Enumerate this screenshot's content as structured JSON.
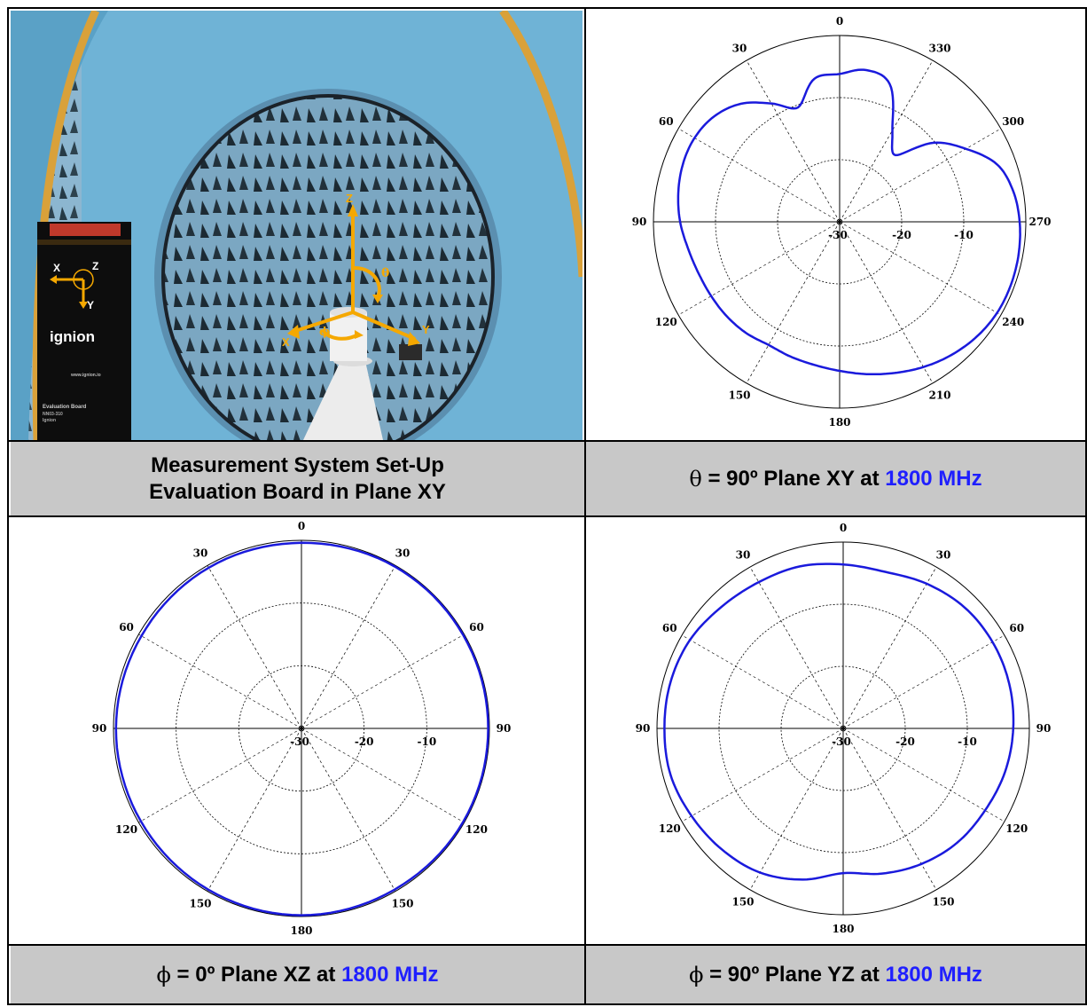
{
  "captions": {
    "setup_line1": "Measurement System Set-Up",
    "setup_line2": "Evaluation Board in Plane XY",
    "xy": {
      "symbol": "θ",
      "text": " = 90º Plane XY at ",
      "freq": "1800 MHz"
    },
    "xz": {
      "symbol": "ϕ",
      "text": " = 0º Plane XZ at ",
      "freq": "1800 MHz"
    },
    "yz": {
      "symbol": "ϕ",
      "text": " = 90º Plane YZ at ",
      "freq": "1800 MHz"
    }
  },
  "photo": {
    "axis_labels": {
      "z": "Z",
      "x": "X",
      "y": "Y",
      "theta": "θ",
      "phi": "ϕ"
    },
    "board": {
      "brand": "ignion",
      "axis_x": "X",
      "axis_y": "Y",
      "axis_z": "Z",
      "website": "www.ignion.io",
      "title": "Evaluation Board",
      "subtitle": "NN03-310",
      "maker": "Ignion"
    }
  },
  "colors": {
    "trace": "#1a1adc",
    "caption_bg": "#c8c8c8",
    "freq": "#1f1fff",
    "axis_orange": "#f5a800",
    "chamber_blue": "#6fb3d6"
  },
  "chart_data": [
    {
      "type": "polar",
      "name": "xy",
      "rlim_db": [
        -30,
        0
      ],
      "radial_ticks": [
        "-30",
        "-20",
        "-10"
      ],
      "angle_labels": [
        "0",
        "30",
        "60",
        "90",
        "120",
        "150",
        "180",
        "210",
        "240",
        "270",
        "300",
        "330"
      ],
      "angle_direction": "clockwise-from-top is 330..270 on right side",
      "series": [
        {
          "angles_deg": [
            0,
            10,
            20,
            30,
            40,
            50,
            60,
            70,
            80,
            90,
            100,
            110,
            120,
            130,
            140,
            150,
            160,
            170,
            180,
            190,
            200,
            210,
            220,
            230,
            240,
            250,
            260,
            270,
            280,
            290,
            300,
            310,
            320,
            330,
            340,
            350,
            360
          ],
          "gain_db": [
            -6.2,
            -6.6,
            -10.4,
            -8.0,
            -5.2,
            -3.6,
            -3.0,
            -3.1,
            -3.6,
            -4.3,
            -5.2,
            -5.8,
            -6.1,
            -6.3,
            -6.6,
            -7.1,
            -6.9,
            -6.6,
            -6.0,
            -5.1,
            -4.1,
            -3.0,
            -2.0,
            -1.2,
            -0.7,
            -0.6,
            -0.7,
            -1.0,
            -1.6,
            -3.0,
            -6.5,
            -10.2,
            -16.0,
            -13.0,
            -6.4,
            -5.2,
            -6.2
          ]
        }
      ]
    },
    {
      "type": "polar",
      "name": "xz",
      "rlim_db": [
        -30,
        0
      ],
      "radial_ticks": [
        "-30",
        "-20",
        "-10"
      ],
      "angle_labels": [
        "0",
        "30",
        "60",
        "90",
        "120",
        "150",
        "180",
        "150",
        "120",
        "90",
        "60",
        "30"
      ],
      "series": [
        {
          "angles_deg": [
            0,
            30,
            60,
            90,
            120,
            150,
            180,
            210,
            240,
            270,
            300,
            330,
            360
          ],
          "gain_db": [
            -0.4,
            -0.4,
            -0.5,
            -0.4,
            -0.4,
            -0.3,
            -0.2,
            -0.3,
            -0.2,
            -0.2,
            -0.2,
            -0.2,
            -0.4
          ]
        }
      ]
    },
    {
      "type": "polar",
      "name": "yz",
      "rlim_db": [
        -30,
        0
      ],
      "radial_ticks": [
        "-30",
        "-20",
        "-10"
      ],
      "angle_labels": [
        "0",
        "30",
        "60",
        "90",
        "120",
        "150",
        "180",
        "150",
        "120",
        "90",
        "60",
        "30"
      ],
      "series": [
        {
          "angles_deg": [
            0,
            15,
            30,
            45,
            60,
            75,
            90,
            105,
            120,
            135,
            150,
            165,
            180,
            195,
            210,
            225,
            240,
            255,
            270,
            285,
            300,
            315,
            330,
            345,
            360
          ],
          "gain_db": [
            -3.6,
            -3.0,
            -2.8,
            -2.3,
            -1.5,
            -1.2,
            -1.2,
            -1.2,
            -1.8,
            -2.4,
            -3.2,
            -4.8,
            -6.7,
            -5.8,
            -4.8,
            -4.0,
            -3.6,
            -3.0,
            -2.6,
            -2.3,
            -2.2,
            -2.4,
            -3.1,
            -3.9,
            -3.6
          ]
        }
      ]
    }
  ]
}
